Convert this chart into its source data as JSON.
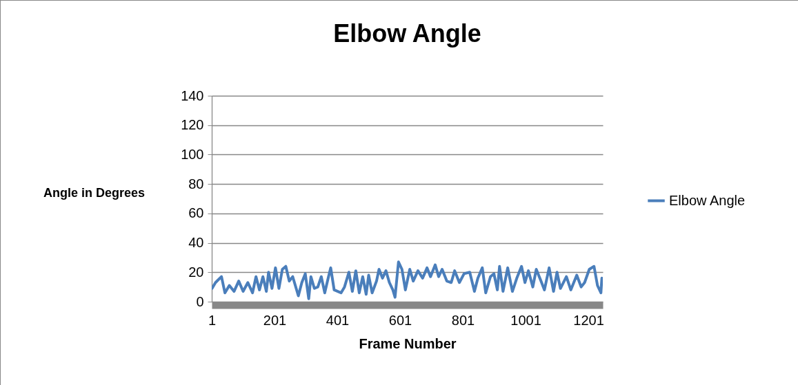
{
  "chart_data": {
    "type": "line",
    "title": "Elbow Angle",
    "xlabel": "Frame Number",
    "ylabel": "Angle in Degrees",
    "xlim": [
      1,
      1247
    ],
    "xticks": [
      1,
      201,
      401,
      601,
      801,
      1001,
      1201
    ],
    "ylim": [
      0,
      140
    ],
    "yticks": [
      0,
      20,
      40,
      60,
      80,
      100,
      120,
      140
    ],
    "grid": "y",
    "legend": "right",
    "marker": "none",
    "line_style": "solid",
    "x": [
      2,
      13,
      32,
      43,
      57,
      72,
      87,
      101,
      116,
      131,
      142,
      153,
      164,
      175,
      182,
      193,
      204,
      215,
      226,
      237,
      248,
      259,
      277,
      288,
      299,
      310,
      317,
      328,
      339,
      350,
      361,
      372,
      380,
      391,
      413,
      424,
      438,
      449,
      460,
      471,
      482,
      493,
      501,
      512,
      526,
      534,
      545,
      556,
      567,
      578,
      585,
      596,
      607,
      618,
      632,
      643,
      658,
      673,
      687,
      698,
      713,
      724,
      735,
      750,
      764,
      775,
      790,
      805,
      823,
      838,
      849,
      863,
      874,
      889,
      900,
      911,
      918,
      929,
      944,
      959,
      973,
      988,
      999,
      1010,
      1024,
      1035,
      1050,
      1061,
      1076,
      1090,
      1101,
      1112,
      1131,
      1145,
      1164,
      1178,
      1189,
      1204,
      1219,
      1230,
      1241,
      1244
    ],
    "series": [
      {
        "name": "Elbow Angle",
        "color": "#4a7ebb",
        "values": [
          9,
          13,
          17,
          6,
          11,
          7,
          14,
          7,
          13,
          6,
          17,
          8,
          17,
          7,
          20,
          9,
          23,
          9,
          22,
          24,
          14,
          17,
          4,
          13,
          19,
          2,
          17,
          9,
          10,
          17,
          6,
          16,
          23,
          8,
          6,
          10,
          20,
          7,
          21,
          6,
          17,
          5,
          18,
          6,
          14,
          22,
          16,
          21,
          13,
          8,
          3,
          27,
          22,
          8,
          22,
          14,
          21,
          16,
          23,
          17,
          25,
          17,
          22,
          14,
          13,
          21,
          13,
          19,
          20,
          7,
          16,
          23,
          6,
          17,
          19,
          8,
          24,
          7,
          23,
          7,
          16,
          24,
          13,
          21,
          10,
          22,
          14,
          8,
          23,
          7,
          20,
          9,
          17,
          8,
          18,
          10,
          13,
          22,
          24,
          11,
          6,
          16
        ]
      }
    ]
  }
}
